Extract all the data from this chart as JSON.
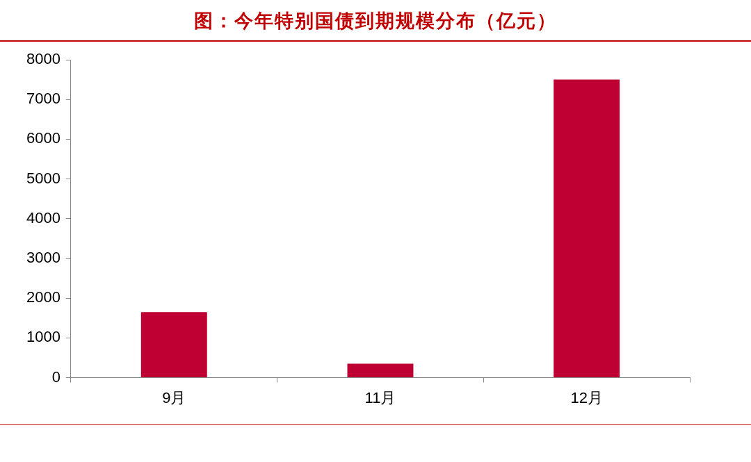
{
  "chart_data": {
    "type": "bar",
    "title": "图：今年特别国债到期规模分布（亿元）",
    "categories": [
      "9月",
      "11月",
      "12月"
    ],
    "values": [
      1650,
      350,
      7500
    ],
    "color": "#be0032",
    "ylim": [
      0,
      8000
    ],
    "yticks": [
      0,
      1000,
      2000,
      3000,
      4000,
      5000,
      6000,
      7000,
      8000
    ],
    "grid": false,
    "legend": false
  }
}
